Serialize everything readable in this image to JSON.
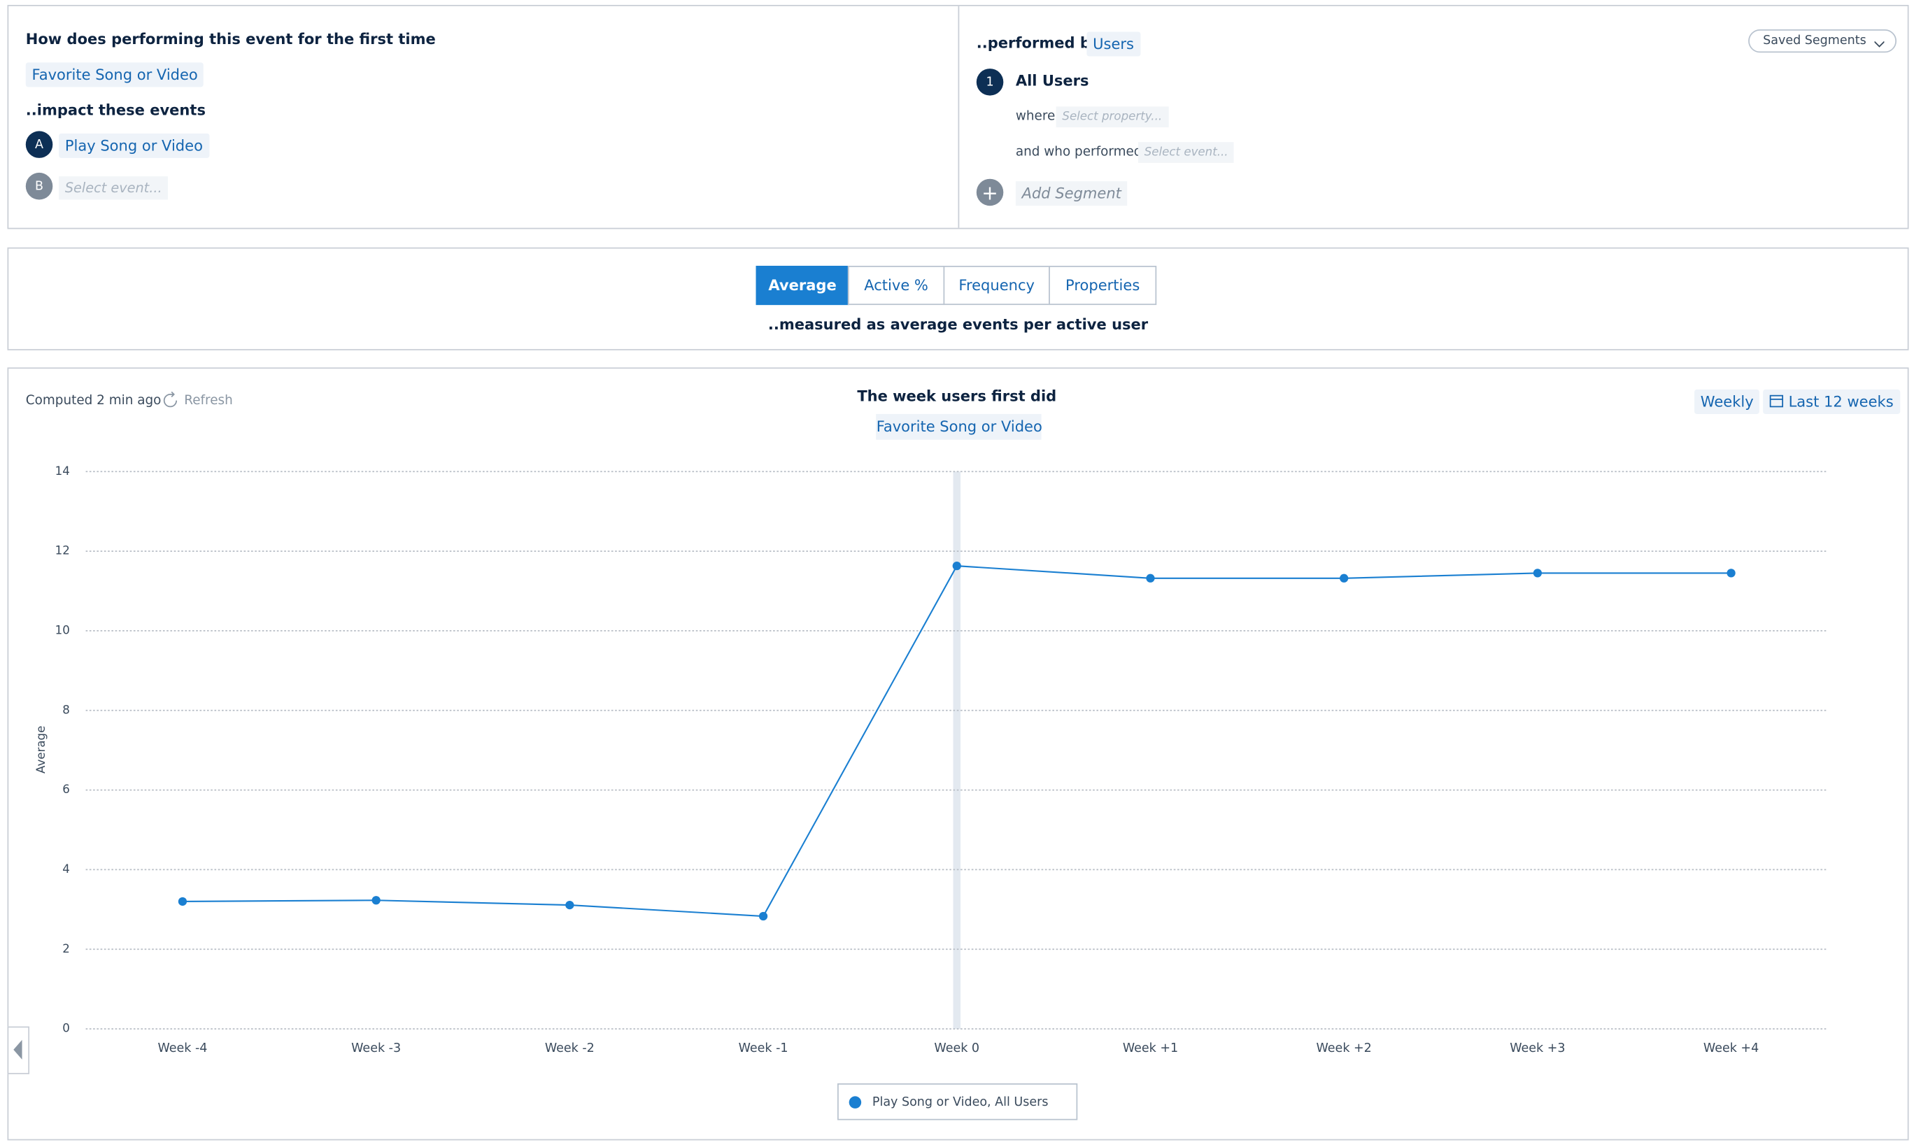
{
  "query": {
    "title": "How does performing this event for the first time",
    "first_event": "Favorite Song or Video",
    "impact_label": "..impact these events",
    "events": [
      {
        "badge": "A",
        "label": "Play Song or Video"
      },
      {
        "badge": "B",
        "label": "Select event..."
      }
    ]
  },
  "segments": {
    "performed_by_label": "..performed by",
    "performed_by": "Users",
    "saved_segments": "Saved Segments",
    "items": [
      {
        "badge": "1",
        "label": "All Users",
        "where_label": "where",
        "where_placeholder": "Select property...",
        "who_label": "and who performed",
        "who_placeholder": "Select event..."
      }
    ],
    "add_segment": "Add Segment"
  },
  "measure": {
    "tabs": [
      "Average",
      "Active %",
      "Frequency",
      "Properties"
    ],
    "active_tab": 0,
    "caption": "..measured as average events per active user"
  },
  "toolbar": {
    "computed": "Computed 2 min ago",
    "refresh": "Refresh",
    "interval": "Weekly",
    "range": "Last 12 weeks"
  },
  "chart_data": {
    "type": "line",
    "title": "The week users first did",
    "subtitle": "Favorite Song or Video",
    "y_label": "Average",
    "categories": [
      "Week -4",
      "Week -3",
      "Week -2",
      "Week -1",
      "Week 0",
      "Week +1",
      "Week +2",
      "Week +3",
      "Week +4"
    ],
    "series": [
      {
        "name": "Play Song or Video, All Users",
        "color": "#1a7fd1",
        "values": [
          3.2,
          3.23,
          3.11,
          2.83,
          11.63,
          11.32,
          11.32,
          11.45,
          11.45
        ]
      }
    ],
    "ylim": [
      0,
      14
    ],
    "yticks": [
      0,
      2,
      4,
      6,
      8,
      10,
      12,
      14
    ],
    "grid": true,
    "highlight_index": 4
  }
}
